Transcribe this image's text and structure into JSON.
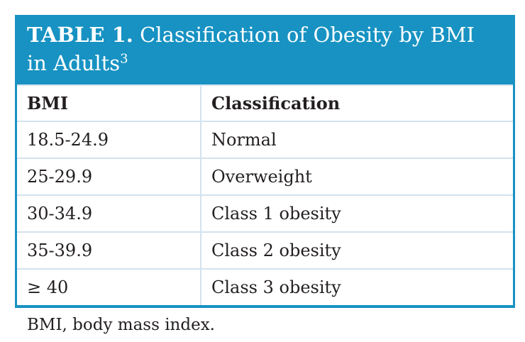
{
  "title": {
    "prefix": "TABLE 1.",
    "line1": "Classification of Obesity by BMI",
    "line2": "in Adults",
    "superscript": "3"
  },
  "table": {
    "columns": [
      "BMI",
      "Classification"
    ],
    "rows": [
      [
        "18.5-24.9",
        "Normal"
      ],
      [
        "25-29.9",
        "Overweight"
      ],
      [
        "30-34.9",
        "Class 1 obesity"
      ],
      [
        "35-39.9",
        "Class 2 obesity"
      ],
      [
        "≥ 40",
        "Class 3 obesity"
      ]
    ]
  },
  "footnote": "BMI, body mass index.",
  "colors": {
    "accent": "#1792c2",
    "divider": "#d3e2ef",
    "text": "#231f20",
    "title_text": "#ffffff"
  }
}
